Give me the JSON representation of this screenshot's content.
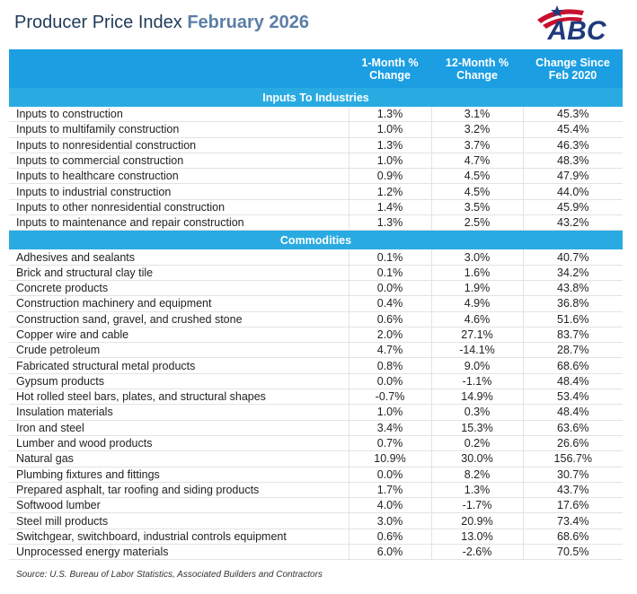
{
  "header": {
    "title": "Producer Price Index",
    "date": "February 2026",
    "logo": "ABC"
  },
  "table": {
    "columns": [
      "1-Month % Change",
      "12-Month % Change",
      "Change Since Feb 2020"
    ],
    "sections": [
      {
        "title": "Inputs To Industries",
        "rows": [
          [
            "Inputs to construction",
            "1.3%",
            "3.1%",
            "45.3%"
          ],
          [
            "Inputs to multifamily construction",
            "1.0%",
            "3.2%",
            "45.4%"
          ],
          [
            "Inputs to nonresidential construction",
            "1.3%",
            "3.7%",
            "46.3%"
          ],
          [
            "Inputs to commercial construction",
            "1.0%",
            "4.7%",
            "48.3%"
          ],
          [
            "Inputs to healthcare construction",
            "0.9%",
            "4.5%",
            "47.9%"
          ],
          [
            "Inputs to industrial construction",
            "1.2%",
            "4.5%",
            "44.0%"
          ],
          [
            "Inputs to other nonresidential construction",
            "1.4%",
            "3.5%",
            "45.9%"
          ],
          [
            "Inputs to maintenance and repair construction",
            "1.3%",
            "2.5%",
            "43.2%"
          ]
        ]
      },
      {
        "title": "Commodities",
        "rows": [
          [
            "Adhesives and sealants",
            "0.1%",
            "3.0%",
            "40.7%"
          ],
          [
            "Brick and structural clay tile",
            "0.1%",
            "1.6%",
            "34.2%"
          ],
          [
            "Concrete products",
            "0.0%",
            "1.9%",
            "43.8%"
          ],
          [
            "Construction machinery and equipment",
            "0.4%",
            "4.9%",
            "36.8%"
          ],
          [
            "Construction sand, gravel, and crushed stone",
            "0.6%",
            "4.6%",
            "51.6%"
          ],
          [
            "Copper wire and cable",
            "2.0%",
            "27.1%",
            "83.7%"
          ],
          [
            "Crude petroleum",
            "4.7%",
            "-14.1%",
            "28.7%"
          ],
          [
            "Fabricated structural metal products",
            "0.8%",
            "9.0%",
            "68.6%"
          ],
          [
            "Gypsum products",
            "0.0%",
            "-1.1%",
            "48.4%"
          ],
          [
            "Hot rolled steel bars, plates, and structural shapes",
            "-0.7%",
            "14.9%",
            "53.4%"
          ],
          [
            "Insulation materials",
            "1.0%",
            "0.3%",
            "48.4%"
          ],
          [
            "Iron and steel",
            "3.4%",
            "15.3%",
            "63.6%"
          ],
          [
            "Lumber and wood products",
            "0.7%",
            "0.2%",
            "26.6%"
          ],
          [
            "Natural gas",
            "10.9%",
            "30.0%",
            "156.7%"
          ],
          [
            "Plumbing fixtures and fittings",
            "0.0%",
            "8.2%",
            "30.7%"
          ],
          [
            "Prepared asphalt, tar roofing and siding products",
            "1.7%",
            "1.3%",
            "43.7%"
          ],
          [
            "Softwood lumber",
            "4.0%",
            "-1.7%",
            "17.6%"
          ],
          [
            "Steel mill products",
            "3.0%",
            "20.9%",
            "73.4%"
          ],
          [
            "Switchgear, switchboard, industrial controls equipment",
            "0.6%",
            "13.0%",
            "68.6%"
          ],
          [
            "Unprocessed energy materials",
            "6.0%",
            "-2.6%",
            "70.5%"
          ]
        ]
      }
    ]
  },
  "source": "Source: U.S. Bureau of Labor Statistics, Associated Builders and Contractors"
}
